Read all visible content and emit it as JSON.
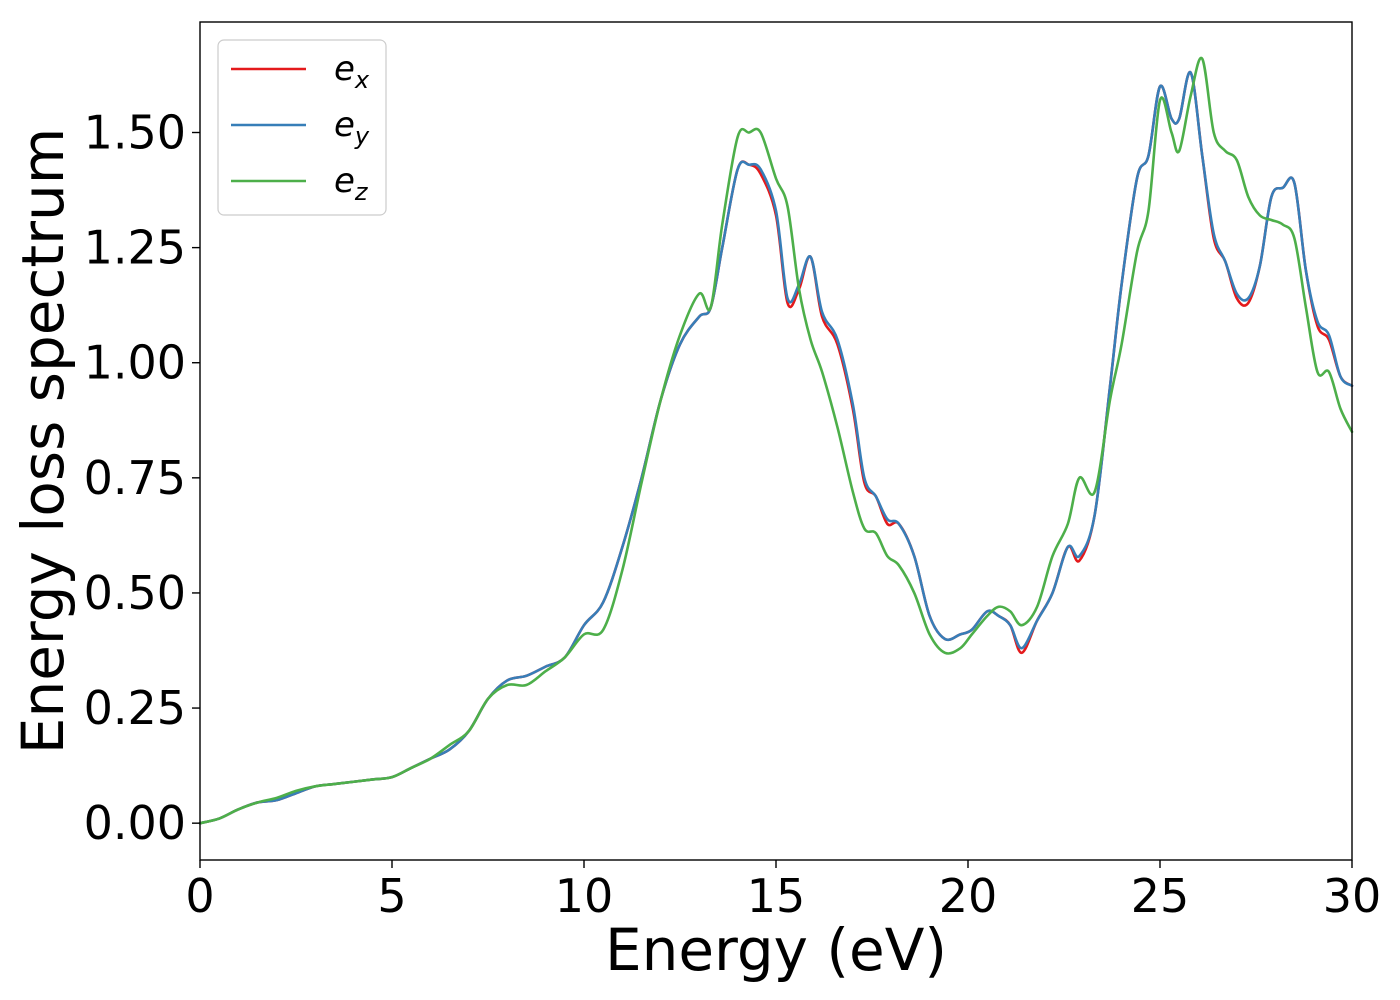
{
  "chart_data": {
    "type": "line",
    "title": "",
    "xlabel": "Energy (eV)",
    "ylabel": "Energy loss spectrum",
    "xlim": [
      0,
      30
    ],
    "ylim": [
      -0.08,
      1.74
    ],
    "xticks": [
      0,
      5,
      10,
      15,
      20,
      25,
      30
    ],
    "xtick_labels": [
      "0",
      "5",
      "10",
      "15",
      "20",
      "25",
      "30"
    ],
    "yticks": [
      0.0,
      0.25,
      0.5,
      0.75,
      1.0,
      1.25,
      1.5
    ],
    "ytick_labels": [
      "0.00",
      "0.25",
      "0.50",
      "0.75",
      "1.00",
      "1.25",
      "1.50"
    ],
    "grid": false,
    "legend_position": "top-left",
    "series": [
      {
        "name_main": "e",
        "name_sub": "x",
        "color": "#e41a1c",
        "x": [
          0,
          0.5,
          1,
          1.5,
          2,
          2.5,
          3,
          3.5,
          4,
          4.5,
          5,
          5.5,
          6,
          6.5,
          7,
          7.5,
          8,
          8.5,
          9,
          9.5,
          10,
          10.5,
          11,
          11.5,
          12,
          12.5,
          13,
          13.3,
          13.6,
          14,
          14.3,
          14.6,
          15,
          15.3,
          15.6,
          15.9,
          16.2,
          16.6,
          17,
          17.3,
          17.6,
          17.9,
          18.2,
          18.6,
          19,
          19.4,
          19.8,
          20.1,
          20.5,
          20.8,
          21.1,
          21.4,
          21.8,
          22.2,
          22.6,
          22.9,
          23.3,
          23.7,
          24,
          24.4,
          24.7,
          25,
          25.3,
          25.5,
          25.8,
          26.1,
          26.4,
          26.7,
          27,
          27.3,
          27.6,
          27.9,
          28.2,
          28.5,
          28.8,
          29.1,
          29.4,
          29.7,
          30
        ],
        "y": [
          0,
          0.01,
          0.03,
          0.045,
          0.05,
          0.065,
          0.08,
          0.085,
          0.09,
          0.095,
          0.1,
          0.12,
          0.14,
          0.16,
          0.2,
          0.27,
          0.31,
          0.32,
          0.34,
          0.36,
          0.43,
          0.48,
          0.6,
          0.75,
          0.92,
          1.04,
          1.1,
          1.12,
          1.25,
          1.42,
          1.43,
          1.41,
          1.32,
          1.13,
          1.16,
          1.23,
          1.1,
          1.04,
          0.9,
          0.74,
          0.71,
          0.65,
          0.65,
          0.58,
          0.45,
          0.4,
          0.41,
          0.42,
          0.46,
          0.45,
          0.43,
          0.37,
          0.44,
          0.5,
          0.6,
          0.57,
          0.67,
          0.95,
          1.17,
          1.4,
          1.45,
          1.6,
          1.53,
          1.53,
          1.63,
          1.45,
          1.27,
          1.22,
          1.14,
          1.13,
          1.21,
          1.36,
          1.38,
          1.39,
          1.2,
          1.08,
          1.05,
          0.97,
          0.95
        ]
      },
      {
        "name_main": "e",
        "name_sub": "y",
        "color": "#377eb8",
        "x": [
          0,
          0.5,
          1,
          1.5,
          2,
          2.5,
          3,
          3.5,
          4,
          4.5,
          5,
          5.5,
          6,
          6.5,
          7,
          7.5,
          8,
          8.5,
          9,
          9.5,
          10,
          10.5,
          11,
          11.5,
          12,
          12.5,
          13,
          13.3,
          13.6,
          14,
          14.3,
          14.6,
          15,
          15.3,
          15.6,
          15.9,
          16.2,
          16.6,
          17,
          17.3,
          17.6,
          17.9,
          18.2,
          18.6,
          19,
          19.4,
          19.8,
          20.1,
          20.5,
          20.8,
          21.1,
          21.4,
          21.8,
          22.2,
          22.6,
          22.9,
          23.3,
          23.7,
          24,
          24.4,
          24.7,
          25,
          25.3,
          25.5,
          25.8,
          26.1,
          26.4,
          26.7,
          27,
          27.3,
          27.6,
          27.9,
          28.2,
          28.5,
          28.8,
          29.1,
          29.4,
          29.7,
          30
        ],
        "y": [
          0,
          0.01,
          0.03,
          0.045,
          0.05,
          0.065,
          0.08,
          0.085,
          0.09,
          0.095,
          0.1,
          0.12,
          0.14,
          0.16,
          0.2,
          0.27,
          0.31,
          0.32,
          0.34,
          0.36,
          0.43,
          0.48,
          0.6,
          0.75,
          0.92,
          1.04,
          1.1,
          1.12,
          1.25,
          1.42,
          1.43,
          1.42,
          1.33,
          1.14,
          1.17,
          1.23,
          1.11,
          1.05,
          0.91,
          0.75,
          0.71,
          0.66,
          0.65,
          0.58,
          0.45,
          0.4,
          0.41,
          0.42,
          0.46,
          0.45,
          0.43,
          0.38,
          0.44,
          0.5,
          0.6,
          0.58,
          0.67,
          0.95,
          1.17,
          1.4,
          1.45,
          1.6,
          1.53,
          1.53,
          1.63,
          1.45,
          1.28,
          1.22,
          1.15,
          1.14,
          1.21,
          1.36,
          1.38,
          1.39,
          1.2,
          1.09,
          1.06,
          0.97,
          0.95
        ]
      },
      {
        "name_main": "e",
        "name_sub": "z",
        "color": "#4daf4a",
        "x": [
          0,
          0.5,
          1,
          1.5,
          2,
          2.5,
          3,
          3.5,
          4,
          4.5,
          5,
          5.5,
          6,
          6.5,
          7,
          7.5,
          8,
          8.5,
          9,
          9.5,
          10,
          10.5,
          11,
          11.5,
          12,
          12.5,
          13,
          13.3,
          13.6,
          14,
          14.3,
          14.6,
          15,
          15.3,
          15.6,
          15.9,
          16.2,
          16.6,
          17,
          17.3,
          17.6,
          17.9,
          18.2,
          18.6,
          19,
          19.4,
          19.8,
          20.1,
          20.5,
          20.8,
          21.1,
          21.4,
          21.8,
          22.2,
          22.6,
          22.9,
          23.3,
          23.7,
          24,
          24.4,
          24.7,
          25,
          25.3,
          25.5,
          25.8,
          26.1,
          26.4,
          26.7,
          27,
          27.3,
          27.6,
          27.9,
          28.2,
          28.5,
          28.8,
          29.1,
          29.4,
          29.7,
          30
        ],
        "y": [
          0,
          0.01,
          0.03,
          0.045,
          0.055,
          0.07,
          0.08,
          0.085,
          0.09,
          0.095,
          0.1,
          0.12,
          0.14,
          0.17,
          0.2,
          0.27,
          0.3,
          0.3,
          0.33,
          0.36,
          0.41,
          0.42,
          0.55,
          0.74,
          0.92,
          1.06,
          1.15,
          1.12,
          1.3,
          1.49,
          1.5,
          1.5,
          1.4,
          1.34,
          1.16,
          1.05,
          0.98,
          0.86,
          0.72,
          0.64,
          0.63,
          0.58,
          0.56,
          0.5,
          0.41,
          0.37,
          0.38,
          0.41,
          0.45,
          0.47,
          0.46,
          0.43,
          0.47,
          0.58,
          0.65,
          0.75,
          0.72,
          0.92,
          1.04,
          1.24,
          1.33,
          1.57,
          1.5,
          1.46,
          1.58,
          1.66,
          1.5,
          1.46,
          1.44,
          1.36,
          1.32,
          1.31,
          1.3,
          1.27,
          1.12,
          0.98,
          0.98,
          0.9,
          0.85
        ]
      }
    ]
  }
}
